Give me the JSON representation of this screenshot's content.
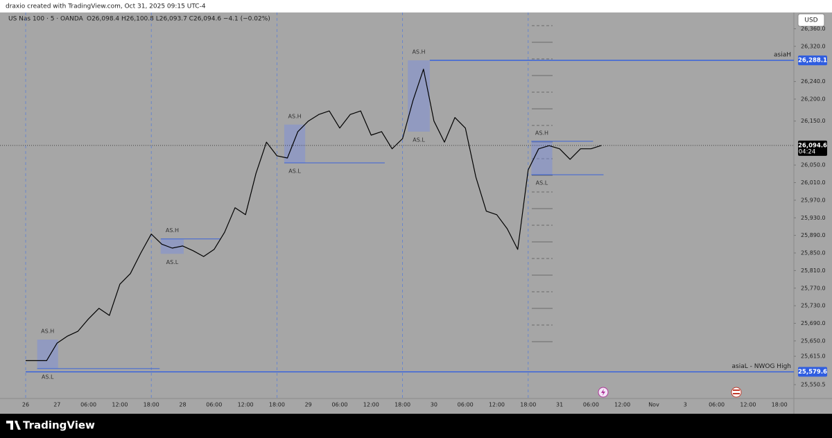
{
  "chart_data": {
    "type": "line",
    "credit": "draxio created with TradingView.com, Oct 31, 2025 09:15 UTC-4",
    "title": "US Nas 100 · 5 · OANDA",
    "subtitle": "O26,098.4 H26,100.8 L26,093.7 C26,094.6 −4.1 (−0.02%)",
    "currency": "USD",
    "brand": "TradingView",
    "color": "#000000",
    "categories": [
      "26",
      null,
      null,
      "27",
      null,
      null,
      "06:00",
      null,
      null,
      "12:00",
      null,
      null,
      "18:00",
      null,
      null,
      "28",
      null,
      null,
      "06:00",
      null,
      null,
      "12:00",
      null,
      null,
      "18:00",
      null,
      null,
      "29",
      null,
      null,
      "06:00",
      null,
      null,
      "12:00",
      null,
      null,
      "18:00",
      null,
      null,
      "30",
      null,
      null,
      "06:00",
      null,
      null,
      "12:00",
      null,
      null,
      "18:00",
      null,
      null,
      "31",
      null,
      null,
      "06:00",
      null,
      null,
      "12:00",
      null,
      null,
      "Nov",
      null,
      null,
      "3",
      null,
      null,
      "06:00",
      null,
      null,
      "12:00",
      null,
      null,
      "18:00",
      null
    ],
    "values": [
      25605,
      25605,
      25605,
      25645,
      25661,
      25672,
      25700,
      25724,
      25708,
      25779,
      25803,
      25850,
      25893,
      25870,
      25861,
      25866,
      25855,
      25842,
      25858,
      25897,
      25953,
      25937,
      26031,
      26102,
      26071,
      26066,
      26126,
      26150,
      26165,
      26173,
      26134,
      26165,
      26173,
      26118,
      26126,
      26087,
      26110,
      26197,
      26268,
      26150,
      26102,
      26158,
      26134,
      26023,
      25945,
      25937,
      25905,
      25858,
      26039,
      26087,
      26094,
      26087,
      26063,
      26087,
      26087,
      26094.6,
      null,
      null,
      null,
      null,
      null,
      null,
      null,
      null,
      null,
      null,
      null,
      null,
      null,
      null,
      null,
      null,
      null,
      null
    ],
    "ylim": [
      25519,
      26397
    ],
    "yticks": [
      {
        "value": 26360,
        "label": "26,360.0"
      },
      {
        "value": 26320,
        "label": "26,320.0"
      },
      {
        "value": 26240,
        "label": "26,240.0"
      },
      {
        "value": 26200,
        "label": "26,200.0"
      },
      {
        "value": 26150,
        "label": "26,150.0"
      },
      {
        "value": 26050,
        "label": "26,050.0"
      },
      {
        "value": 26010,
        "label": "26,010.0"
      },
      {
        "value": 25970,
        "label": "25,970.0"
      },
      {
        "value": 25930,
        "label": "25,930.0"
      },
      {
        "value": 25890,
        "label": "25,890.0"
      },
      {
        "value": 25850,
        "label": "25,850.0"
      },
      {
        "value": 25810,
        "label": "25,810.0"
      },
      {
        "value": 25770,
        "label": "25,770.0"
      },
      {
        "value": 25730,
        "label": "25,730.0"
      },
      {
        "value": 25690,
        "label": "25,690.0"
      },
      {
        "value": 25650,
        "label": "25,650.0"
      },
      {
        "value": 25615,
        "label": "25,615.0"
      },
      {
        "value": 25550.5,
        "label": "25,550.5"
      }
    ],
    "grid": false,
    "session_high_label": "AS.H",
    "session_low_label": "AS.L",
    "sessions": [
      {
        "high": 25653,
        "low": 25587,
        "from": 1.1,
        "to": 3.1,
        "low_to": 12.8
      },
      {
        "high": 25882,
        "low": 25848,
        "from": 12.9,
        "to": 15.1,
        "high_to": 18.6
      },
      {
        "high": 26142,
        "low": 26055,
        "from": 24.7,
        "to": 26.7,
        "low_to": 34.3
      },
      {
        "high": 26288.1,
        "low": 26126,
        "from": 36.5,
        "to": 38.6
      },
      {
        "high": 26104,
        "low": 26028,
        "from": 48.3,
        "to": 50.3,
        "high_to": 54.2,
        "low_to": 55.2
      }
    ],
    "levels": [
      {
        "name": "asiaH",
        "value": 26288.1,
        "value_label": "26,288.1",
        "from": 38.6
      },
      {
        "name": "asiaL - NWOG High",
        "value": 25579.6,
        "value_label": "25,579.6",
        "from": 0
      }
    ],
    "last": {
      "value": 26094.6,
      "label": "26,094.6",
      "countdown": "04:24"
    }
  }
}
